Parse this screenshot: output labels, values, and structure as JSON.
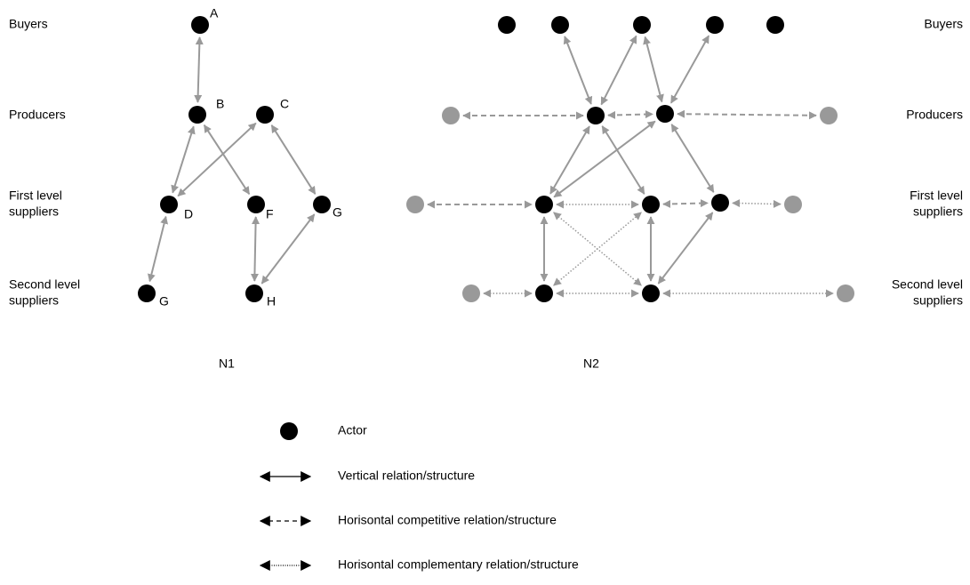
{
  "levels": [
    {
      "lines": [
        "Buyers"
      ]
    },
    {
      "lines": [
        "Producers"
      ]
    },
    {
      "lines": [
        "First level",
        "suppliers"
      ]
    },
    {
      "lines": [
        "Second level",
        "suppliers"
      ]
    }
  ],
  "n1": {
    "title": "N1",
    "node_labels": [
      "A",
      "B",
      "C",
      "D",
      "F",
      "G",
      "G",
      "H"
    ]
  },
  "n2": {
    "title": "N2"
  },
  "legend": [
    "Actor",
    "Vertical relation/structure",
    "Horisontal competitive relation/structure",
    "Horisontal complementary relation/structure"
  ]
}
